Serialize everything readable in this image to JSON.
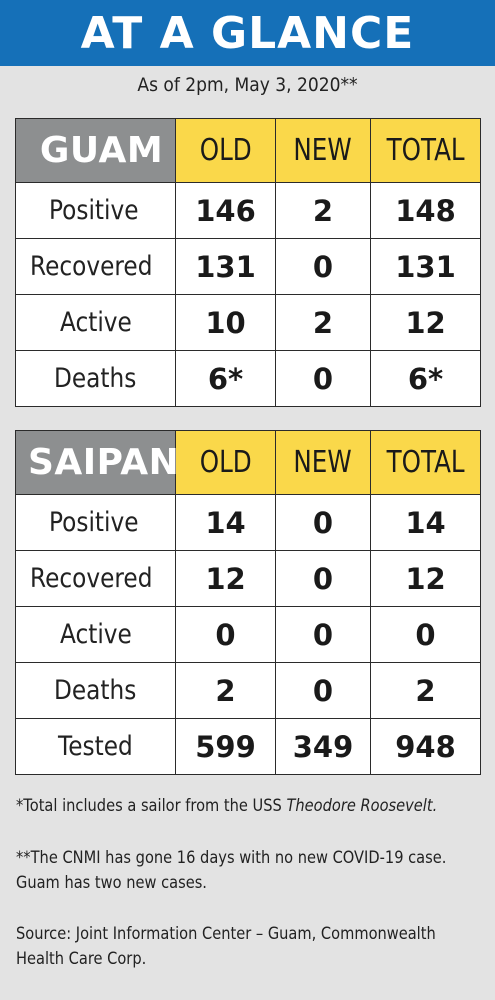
{
  "header": {
    "title": "AT A GLANCE"
  },
  "subtitle": "As of 2pm, May 3, 2020**",
  "colors": {
    "header_bg": "#1570b8",
    "region_bg": "#8d8f90",
    "column_header_bg": "#fad84a",
    "page_bg": "#e3e3e3"
  },
  "guam": {
    "region": "GUAM",
    "columns": [
      "OLD",
      "NEW",
      "TOTAL"
    ],
    "rows": [
      {
        "label": "Positive",
        "old": "146",
        "new": "2",
        "total": "148"
      },
      {
        "label": "Recovered",
        "old": "131",
        "new": "0",
        "total": "131"
      },
      {
        "label": "Active",
        "old": "10",
        "new": "2",
        "total": "12"
      },
      {
        "label": "Deaths",
        "old": "6*",
        "new": "0",
        "total": "6*"
      }
    ]
  },
  "saipan": {
    "region": "SAIPAN",
    "columns": [
      "OLD",
      "NEW",
      "TOTAL"
    ],
    "rows": [
      {
        "label": "Positive",
        "old": "14",
        "new": "0",
        "total": "14"
      },
      {
        "label": "Recovered",
        "old": "12",
        "new": "0",
        "total": "12"
      },
      {
        "label": "Active",
        "old": "0",
        "new": "0",
        "total": "0"
      },
      {
        "label": "Deaths",
        "old": "2",
        "new": "0",
        "total": "2"
      },
      {
        "label": "Tested",
        "old": "599",
        "new": "349",
        "total": "948"
      }
    ]
  },
  "notes": {
    "note1_prefix": "*Total includes a sailor from the USS ",
    "note1_ship": "Theodore Roosevelt.",
    "note2": "**The CNMI has gone 16 days with no new COVID-19 case. Guam has two new cases.",
    "note3": "Source: Joint Information Center – Guam, Commonwealth Health Care Corp."
  }
}
